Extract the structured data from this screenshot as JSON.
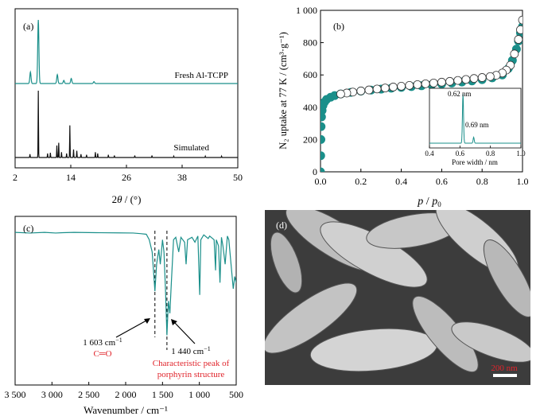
{
  "colors": {
    "teal": "#1a8f8a",
    "black": "#111111",
    "red": "#e0242b",
    "axis": "#000000"
  },
  "chart_data": [
    {
      "panel": "(a)",
      "type": "line",
      "xlabel_prefix": "2",
      "xlabel_theta": "θ",
      "xlabel_suffix": " / (°)",
      "xlim": [
        2,
        50
      ],
      "x_ticks": [
        "2",
        "14",
        "26",
        "38",
        "50"
      ],
      "series": [
        {
          "name": "Fresh Al-TCPP",
          "peaks": [
            [
              5.3,
              0.18
            ],
            [
              7.0,
              1.0
            ],
            [
              11.1,
              0.14
            ],
            [
              12.5,
              0.05
            ],
            [
              14.1,
              0.08
            ],
            [
              19.0,
              0.03
            ]
          ]
        },
        {
          "name": "Simulated",
          "peaks": [
            [
              5.2,
              0.05
            ],
            [
              7.0,
              1.0
            ],
            [
              9.0,
              0.06
            ],
            [
              9.6,
              0.07
            ],
            [
              11.0,
              0.18
            ],
            [
              11.4,
              0.22
            ],
            [
              12.0,
              0.08
            ],
            [
              13.1,
              0.06
            ],
            [
              13.8,
              0.48
            ],
            [
              14.6,
              0.12
            ],
            [
              15.3,
              0.1
            ],
            [
              16.2,
              0.05
            ],
            [
              17.4,
              0.04
            ],
            [
              19.3,
              0.08
            ],
            [
              19.8,
              0.06
            ],
            [
              22.1,
              0.04
            ],
            [
              23.4,
              0.03
            ],
            [
              27.8,
              0.03
            ],
            [
              31.5,
              0.03
            ],
            [
              36.2,
              0.02
            ],
            [
              43.0,
              0.02
            ],
            [
              46.5,
              0.02
            ]
          ]
        }
      ]
    },
    {
      "panel": "(b)",
      "type": "scatter",
      "ylabel": "N₂ uptake at 77 K / (cm³·g⁻¹)",
      "xlabel_p": "p",
      "xlabel_sep": " / ",
      "xlabel_p0": "p",
      "xlabel_p0_sub": "0",
      "xlim": [
        0,
        1.0
      ],
      "ylim": [
        0,
        1000
      ],
      "x_ticks": [
        "0.0",
        "0.2",
        "0.4",
        "0.6",
        "0.8",
        "1.0"
      ],
      "y_ticks": [
        "0",
        "200",
        "400",
        "600",
        "800",
        "1 000"
      ],
      "adsorption": [
        [
          0.0,
          0
        ],
        [
          0.001,
          100
        ],
        [
          0.002,
          200
        ],
        [
          0.003,
          280
        ],
        [
          0.005,
          340
        ],
        [
          0.008,
          380
        ],
        [
          0.012,
          410
        ],
        [
          0.02,
          432
        ],
        [
          0.03,
          448
        ],
        [
          0.05,
          462
        ],
        [
          0.07,
          472
        ],
        [
          0.1,
          482
        ],
        [
          0.15,
          492
        ],
        [
          0.2,
          500
        ],
        [
          0.25,
          506
        ],
        [
          0.3,
          512
        ],
        [
          0.35,
          518
        ],
        [
          0.4,
          523
        ],
        [
          0.45,
          528
        ],
        [
          0.5,
          533
        ],
        [
          0.55,
          538
        ],
        [
          0.6,
          544
        ],
        [
          0.65,
          550
        ],
        [
          0.7,
          556
        ],
        [
          0.75,
          563
        ],
        [
          0.8,
          571
        ],
        [
          0.85,
          582
        ],
        [
          0.9,
          600
        ],
        [
          0.93,
          640
        ],
        [
          0.95,
          690
        ],
        [
          0.97,
          760
        ],
        [
          0.98,
          810
        ],
        [
          0.99,
          860
        ],
        [
          1.0,
          900
        ]
      ],
      "desorption": [
        [
          1.0,
          940
        ],
        [
          0.99,
          880
        ],
        [
          0.98,
          820
        ],
        [
          0.96,
          730
        ],
        [
          0.94,
          660
        ],
        [
          0.92,
          630
        ],
        [
          0.9,
          612
        ],
        [
          0.87,
          598
        ],
        [
          0.84,
          590
        ],
        [
          0.8,
          584
        ],
        [
          0.76,
          578
        ],
        [
          0.72,
          572
        ],
        [
          0.68,
          566
        ],
        [
          0.64,
          560
        ],
        [
          0.6,
          555
        ],
        [
          0.56,
          550
        ],
        [
          0.52,
          545
        ],
        [
          0.48,
          540
        ],
        [
          0.44,
          535
        ],
        [
          0.4,
          530
        ],
        [
          0.36,
          525
        ],
        [
          0.32,
          519
        ],
        [
          0.28,
          513
        ],
        [
          0.24,
          507
        ],
        [
          0.2,
          501
        ],
        [
          0.16,
          494
        ],
        [
          0.13,
          488
        ],
        [
          0.1,
          482
        ]
      ],
      "inset": {
        "xlabel": "Pore width / nm",
        "xlim": [
          0.4,
          1.0
        ],
        "x_ticks": [
          "0.4",
          "0.6",
          "0.8",
          "1.0"
        ],
        "peaks": [
          [
            0.62,
            1.0
          ],
          [
            0.69,
            0.12
          ]
        ],
        "labels": [
          "0.62 nm",
          "0.69 nm"
        ]
      }
    },
    {
      "panel": "(c)",
      "type": "line",
      "xlabel": "Wavenumber / cm⁻¹",
      "xlim": [
        3500,
        500
      ],
      "x_ticks": [
        "3 500",
        "3 000",
        "2 500",
        "2 000",
        "1 500",
        "1 000",
        "500"
      ],
      "transmittance": [
        [
          3500,
          0.96
        ],
        [
          3300,
          0.955
        ],
        [
          3100,
          0.96
        ],
        [
          2950,
          0.955
        ],
        [
          2850,
          0.958
        ],
        [
          2700,
          0.96
        ],
        [
          2400,
          0.958
        ],
        [
          2100,
          0.956
        ],
        [
          1900,
          0.955
        ],
        [
          1800,
          0.95
        ],
        [
          1720,
          0.945
        ],
        [
          1680,
          0.9
        ],
        [
          1640,
          0.8
        ],
        [
          1603,
          0.48
        ],
        [
          1580,
          0.7
        ],
        [
          1550,
          0.82
        ],
        [
          1530,
          0.7
        ],
        [
          1500,
          0.9
        ],
        [
          1480,
          0.8
        ],
        [
          1460,
          0.5
        ],
        [
          1440,
          0.12
        ],
        [
          1420,
          0.4
        ],
        [
          1400,
          0.3
        ],
        [
          1380,
          0.55
        ],
        [
          1350,
          0.9
        ],
        [
          1320,
          0.92
        ],
        [
          1280,
          0.8
        ],
        [
          1250,
          0.92
        ],
        [
          1200,
          0.88
        ],
        [
          1180,
          0.7
        ],
        [
          1160,
          0.9
        ],
        [
          1100,
          0.92
        ],
        [
          1060,
          0.88
        ],
        [
          1020,
          0.93
        ],
        [
          995,
          0.45
        ],
        [
          980,
          0.9
        ],
        [
          940,
          0.94
        ],
        [
          880,
          0.91
        ],
        [
          860,
          0.93
        ],
        [
          800,
          0.9
        ],
        [
          780,
          0.65
        ],
        [
          770,
          0.9
        ],
        [
          740,
          0.85
        ],
        [
          720,
          0.55
        ],
        [
          700,
          0.92
        ],
        [
          680,
          0.85
        ],
        [
          650,
          0.7
        ],
        [
          620,
          0.93
        ],
        [
          600,
          0.9
        ],
        [
          570,
          0.7
        ],
        [
          540,
          0.5
        ],
        [
          520,
          0.6
        ],
        [
          500,
          0.55
        ]
      ],
      "annotations": [
        {
          "wavenumber": "1 603",
          "unit": "cm",
          "exp": "−1",
          "label": "C═O"
        },
        {
          "wavenumber": "1 440",
          "unit": "cm",
          "exp": "−1",
          "label_line1": "Characteristic peak of",
          "label_line2": "porphyrin structure"
        }
      ]
    }
  ],
  "panel_d": {
    "label": "(d)",
    "scale_bar": "200 nm"
  }
}
